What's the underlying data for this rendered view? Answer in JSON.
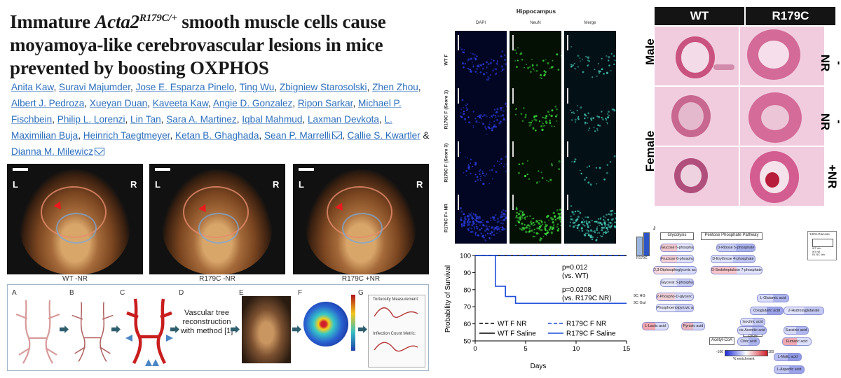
{
  "paper": {
    "title_pre": "Immature ",
    "title_gene": "Acta2",
    "title_sup": "R179C/+",
    "title_post": " smooth muscle cells cause moyamoya-like cerebrovascular lesions in mice prevented by boosting OXPHOS",
    "authors": [
      "Anita Kaw",
      "Suravi Majumder",
      "Jose E. Esparza Pinelo",
      "Ting Wu",
      "Zbigniew Starosolski",
      "Zhen Zhou",
      "Albert J. Pedroza",
      "Xueyan Duan",
      "Kaveeta Kaw",
      "Angie D. Gonzalez",
      "Ripon Sarkar",
      "Michael P. Fischbein",
      "Philip L. Lorenzi",
      "Lin Tan",
      "Sara A. Martinez",
      "Iqbal Mahmud",
      "Laxman Devkota",
      "L. Maximilian Buja",
      "Heinrich Taegtmeyer",
      "Ketan B. Ghaghada",
      "Sean P. Marrelli",
      "Callie S. Kwartler",
      "Dianna M. Milewicz"
    ],
    "corresponding_icon": "envelope-icon",
    "ampersand": "&"
  },
  "ct_panels": [
    {
      "caption": "WT -NR",
      "left": "L",
      "right": "R"
    },
    {
      "caption": "R179C -NR",
      "left": "L",
      "right": "R"
    },
    {
      "caption": "R179C +NR",
      "left": "L",
      "right": "R"
    }
  ],
  "pipeline": {
    "labels": [
      "A",
      "B",
      "C",
      "D",
      "E",
      "F",
      "G"
    ],
    "d_text": "Vascular tree reconstruction with method [1]",
    "g_title1": "Tortuosity Measurement:",
    "g_title2": "Inflection Count Metric:"
  },
  "hippocampus": {
    "title": "Hippocampus",
    "columns": [
      "DAPI",
      "NeuN",
      "Merge"
    ],
    "rows": [
      "WT F",
      "R179C F (Score 1)",
      "R179C F (Score 3)",
      "R179C F+ NR"
    ]
  },
  "chart_data": {
    "type": "line",
    "step": true,
    "ylabel": "Probability of Survival",
    "xlabel": "Days",
    "xlim": [
      0,
      15
    ],
    "ylim": [
      50,
      100
    ],
    "xticks": [
      0,
      5,
      10,
      15
    ],
    "yticks": [
      50,
      60,
      70,
      80,
      90,
      100
    ],
    "annotations": [
      "p=0.012",
      "(vs. WT)",
      "p=0.0208",
      "(vs. R179C NR)"
    ],
    "series": [
      {
        "name": "WT F Saline",
        "style": "solid",
        "color": "#000000",
        "x": [
          0,
          15
        ],
        "y": [
          100,
          100
        ]
      },
      {
        "name": "WT F NR",
        "style": "dashed",
        "color": "#000000",
        "x": [
          0,
          15
        ],
        "y": [
          100,
          100
        ]
      },
      {
        "name": "R179C F Saline",
        "style": "solid",
        "color": "#1f4fd8",
        "x": [
          0,
          2,
          2,
          3,
          3,
          4,
          4,
          15
        ],
        "y": [
          100,
          100,
          82,
          82,
          76,
          76,
          72,
          72
        ]
      },
      {
        "name": "R179C F NR",
        "style": "dashed",
        "color": "#1f4fd8",
        "x": [
          0,
          15
        ],
        "y": [
          100,
          100
        ]
      }
    ]
  },
  "histology": {
    "columns": [
      "WT",
      "R179C"
    ],
    "rows": [
      "Male",
      "Female"
    ],
    "right_labels": [
      "-NR",
      "-NR",
      "+NR"
    ]
  },
  "metabolism": {
    "panel_letter": "J",
    "inset_label": "R179C",
    "sections": [
      "Glycolysis",
      "Pentose Phosphate Pathway",
      "TCA cycle"
    ],
    "metabolites": [
      "Glucose 6-phosphate",
      "Fructose 6-phosphate",
      "2,3-Diphosphoglyceric acid",
      "Glyceral 3-phosphate",
      "2-Phospho-D-glyceric acid",
      "Phosphoenolpyruvic acid",
      "L-Lactic acid",
      "Pyruvic acid",
      "D-Ribose 5-phosphate",
      "D-Erythrose 4-phosphate",
      "D-Sedoheptulose 7-phosphate",
      "L-Glutamic acid",
      "Oxoglutaric acid",
      "2-Hydroxyglutarate",
      "Isocitric acid",
      "cis-Aconitic acid",
      "Citric acid",
      "Succinic acid",
      "Fumaric acid",
      "L-Malic acid",
      "L-Aspartic acid"
    ],
    "acetyl": "Acetyl-CoA",
    "groups": [
      "9C HG",
      "9C Gal"
    ],
    "legend_title": "13C6-Glucose",
    "legend_entries": [
      "WT Veh",
      "WT NR",
      "R179C Veh",
      "R179C NR"
    ],
    "scale_min": "-100",
    "scale_max": "100",
    "scale_label": "% enrichment"
  }
}
